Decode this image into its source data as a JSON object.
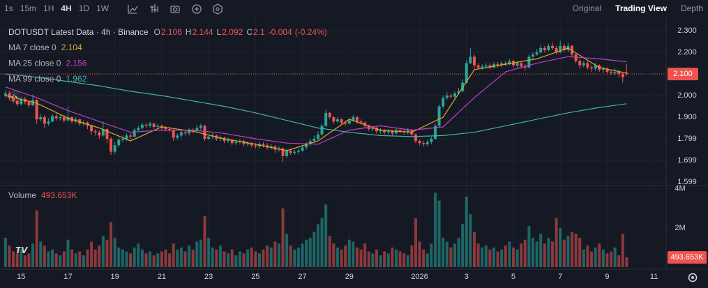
{
  "toolbar": {
    "intervals": [
      "1s",
      "15m",
      "1H",
      "4H",
      "1D",
      "1W"
    ],
    "active_interval": 3,
    "views": [
      "Original",
      "Trading View",
      "Depth"
    ],
    "active_view": 1
  },
  "chart_data": {
    "type": "candlestick",
    "title": "DOTUSDT Latest Data · 4h · Binance",
    "ohlc_labels": [
      "O",
      "H",
      "L",
      "C"
    ],
    "change": "-0.004",
    "change_pct": "(-0.24%)",
    "price_tag": "2.100",
    "up_color": "#26a69a",
    "down_color": "#ef5350",
    "xlim": [
      -1.4,
      169.1
    ],
    "xticks": [
      {
        "value": 4,
        "label": "15"
      },
      {
        "value": 16,
        "label": "17"
      },
      {
        "value": 28,
        "label": "19"
      },
      {
        "value": 40,
        "label": "21"
      },
      {
        "value": 52,
        "label": "23"
      },
      {
        "value": 64,
        "label": "25"
      },
      {
        "value": 76,
        "label": "27"
      },
      {
        "value": 88,
        "label": "29"
      },
      {
        "value": 106,
        "label": "2026"
      },
      {
        "value": 118,
        "label": "3"
      },
      {
        "value": 130,
        "label": "5"
      },
      {
        "value": 142,
        "label": "7"
      },
      {
        "value": 154,
        "label": "9"
      },
      {
        "value": 166,
        "label": "11"
      }
    ],
    "ylim": [
      1.587,
      2.352
    ],
    "yticks": [
      {
        "value": 2.3,
        "label": "2.300"
      },
      {
        "value": 2.2,
        "label": "2.200"
      },
      {
        "value": 2.1,
        "label": "2.100"
      },
      {
        "value": 2.0,
        "label": "2.000"
      },
      {
        "value": 1.9,
        "label": "1.900"
      },
      1.799,
      1.699,
      1.599
    ],
    "open": [
      2.0,
      2.01,
      1.99,
      1.975,
      1.96,
      1.985,
      1.97,
      1.955,
      1.98,
      1.89,
      1.9,
      1.87,
      1.88,
      1.905,
      1.895,
      1.9,
      1.885,
      1.9,
      1.88,
      1.89,
      1.87,
      1.875,
      1.86,
      1.835,
      1.83,
      1.815,
      1.845,
      1.8,
      1.74,
      1.77,
      1.795,
      1.8,
      1.815,
      1.81,
      1.84,
      1.85,
      1.865,
      1.86,
      1.87,
      1.855,
      1.86,
      1.85,
      1.845,
      1.84,
      1.805,
      1.815,
      1.83,
      1.825,
      1.84,
      1.835,
      1.85,
      1.86,
      1.8,
      1.81,
      1.815,
      1.8,
      1.805,
      1.79,
      1.795,
      1.78,
      1.785,
      1.79,
      1.775,
      1.78,
      1.77,
      1.765,
      1.775,
      1.77,
      1.76,
      1.765,
      1.75,
      1.755,
      1.72,
      1.745,
      1.735,
      1.74,
      1.745,
      1.76,
      1.775,
      1.79,
      1.8,
      1.82,
      1.86,
      1.92,
      1.9,
      1.88,
      1.89,
      1.875,
      1.87,
      1.885,
      1.9,
      1.88,
      1.875,
      1.86,
      1.845,
      1.85,
      1.835,
      1.84,
      1.83,
      1.835,
      1.825,
      1.84,
      1.835,
      1.83,
      1.84,
      1.82,
      1.79,
      1.78,
      1.775,
      1.785,
      1.8,
      1.86,
      1.95,
      1.99,
      2.0,
      1.995,
      2.01,
      2.02,
      2.06,
      2.15,
      2.18,
      2.14,
      2.13,
      2.135,
      2.14,
      2.13,
      2.145,
      2.14,
      2.15,
      2.145,
      2.16,
      2.14,
      2.15,
      2.135,
      2.13,
      2.18,
      2.19,
      2.2,
      2.22,
      2.21,
      2.23,
      2.22,
      2.2,
      2.23,
      2.21,
      2.23,
      2.19,
      2.16,
      2.14,
      2.15,
      2.13,
      2.125,
      2.14,
      2.12,
      2.125,
      2.11,
      2.105,
      2.11,
      2.1,
      2.106
    ],
    "high": [
      2.025,
      2.02,
      2.0,
      1.985,
      1.995,
      1.995,
      1.98,
      2.005,
      1.985,
      1.915,
      1.91,
      1.895,
      1.915,
      1.915,
      1.91,
      1.91,
      1.95,
      1.905,
      1.9,
      1.895,
      1.885,
      1.88,
      1.865,
      1.845,
      1.84,
      1.88,
      1.85,
      1.81,
      1.785,
      1.805,
      1.815,
      1.825,
      1.825,
      1.85,
      1.86,
      1.875,
      1.875,
      1.88,
      1.875,
      1.87,
      1.865,
      1.86,
      1.855,
      1.845,
      1.825,
      1.84,
      1.84,
      1.85,
      1.85,
      1.865,
      1.87,
      1.865,
      1.82,
      1.825,
      1.82,
      1.815,
      1.81,
      1.805,
      1.8,
      1.795,
      1.8,
      1.795,
      1.79,
      1.785,
      1.78,
      1.785,
      1.785,
      1.78,
      1.775,
      1.77,
      1.765,
      1.76,
      1.755,
      1.755,
      1.75,
      1.755,
      1.77,
      1.785,
      1.8,
      1.815,
      1.835,
      1.87,
      1.935,
      1.925,
      1.905,
      1.9,
      1.895,
      1.885,
      1.895,
      1.91,
      1.905,
      1.89,
      1.88,
      1.865,
      1.86,
      1.855,
      1.85,
      1.845,
      1.845,
      1.84,
      1.85,
      1.85,
      1.845,
      1.85,
      1.845,
      1.825,
      1.795,
      1.79,
      1.795,
      1.81,
      1.87,
      1.96,
      2.0,
      2.015,
      2.01,
      2.02,
      2.035,
      2.075,
      2.165,
      2.22,
      2.19,
      2.15,
      2.145,
      2.15,
      2.15,
      2.155,
      2.155,
      2.16,
      2.16,
      2.17,
      2.165,
      2.16,
      2.155,
      2.145,
      2.19,
      2.2,
      2.215,
      2.235,
      2.23,
      2.24,
      2.245,
      2.23,
      2.255,
      2.24,
      2.245,
      2.235,
      2.195,
      2.17,
      2.16,
      2.16,
      2.14,
      2.15,
      2.145,
      2.135,
      2.13,
      2.12,
      2.125,
      2.12,
      2.105,
      2.144
    ],
    "low": [
      1.99,
      1.98,
      1.965,
      1.95,
      1.955,
      1.96,
      1.945,
      1.95,
      1.87,
      1.88,
      1.85,
      1.86,
      1.875,
      1.885,
      1.885,
      1.875,
      1.88,
      1.87,
      1.87,
      1.86,
      1.86,
      1.845,
      1.82,
      1.815,
      1.8,
      1.81,
      1.78,
      1.725,
      1.73,
      1.76,
      1.785,
      1.79,
      1.8,
      1.805,
      1.83,
      1.84,
      1.85,
      1.85,
      1.845,
      1.845,
      1.84,
      1.835,
      1.83,
      1.79,
      1.795,
      1.805,
      1.815,
      1.815,
      1.825,
      1.83,
      1.84,
      1.79,
      1.795,
      1.8,
      1.79,
      1.79,
      1.78,
      1.78,
      1.77,
      1.77,
      1.775,
      1.765,
      1.765,
      1.76,
      1.755,
      1.755,
      1.76,
      1.75,
      1.75,
      1.735,
      1.74,
      1.69,
      1.71,
      1.725,
      1.725,
      1.73,
      1.74,
      1.75,
      1.765,
      1.78,
      1.795,
      1.815,
      1.855,
      1.89,
      1.87,
      1.875,
      1.865,
      1.86,
      1.865,
      1.88,
      1.87,
      1.865,
      1.85,
      1.835,
      1.835,
      1.825,
      1.825,
      1.82,
      1.82,
      1.815,
      1.82,
      1.825,
      1.82,
      1.82,
      1.81,
      1.78,
      1.77,
      1.765,
      1.765,
      1.775,
      1.795,
      1.855,
      1.94,
      1.98,
      1.985,
      1.985,
      2.005,
      2.015,
      2.055,
      2.145,
      2.125,
      2.12,
      2.12,
      2.125,
      2.12,
      2.125,
      2.13,
      2.13,
      2.135,
      2.14,
      2.13,
      2.13,
      2.125,
      2.115,
      2.125,
      2.17,
      2.185,
      2.195,
      2.2,
      2.205,
      2.21,
      2.19,
      2.195,
      2.2,
      2.2,
      2.18,
      2.15,
      2.125,
      2.13,
      2.12,
      2.11,
      2.115,
      2.11,
      2.105,
      2.1,
      2.095,
      2.095,
      2.085,
      2.06,
      2.092
    ],
    "close": [
      2.01,
      1.99,
      1.975,
      1.96,
      1.985,
      1.97,
      1.955,
      1.98,
      1.89,
      1.9,
      1.87,
      1.88,
      1.905,
      1.895,
      1.9,
      1.885,
      1.9,
      1.88,
      1.89,
      1.87,
      1.875,
      1.86,
      1.835,
      1.83,
      1.815,
      1.845,
      1.8,
      1.74,
      1.77,
      1.795,
      1.8,
      1.815,
      1.81,
      1.84,
      1.85,
      1.865,
      1.86,
      1.87,
      1.855,
      1.86,
      1.85,
      1.845,
      1.84,
      1.805,
      1.815,
      1.83,
      1.825,
      1.84,
      1.835,
      1.85,
      1.86,
      1.8,
      1.81,
      1.815,
      1.8,
      1.805,
      1.79,
      1.795,
      1.78,
      1.785,
      1.79,
      1.775,
      1.78,
      1.77,
      1.765,
      1.775,
      1.77,
      1.76,
      1.765,
      1.75,
      1.755,
      1.72,
      1.745,
      1.735,
      1.74,
      1.745,
      1.76,
      1.775,
      1.79,
      1.8,
      1.82,
      1.86,
      1.92,
      1.9,
      1.88,
      1.89,
      1.875,
      1.87,
      1.885,
      1.9,
      1.88,
      1.875,
      1.86,
      1.845,
      1.85,
      1.835,
      1.84,
      1.83,
      1.835,
      1.825,
      1.84,
      1.835,
      1.83,
      1.84,
      1.82,
      1.79,
      1.78,
      1.775,
      1.785,
      1.8,
      1.86,
      1.95,
      1.99,
      2.0,
      1.995,
      2.01,
      2.02,
      2.06,
      2.15,
      2.18,
      2.14,
      2.13,
      2.135,
      2.14,
      2.13,
      2.145,
      2.14,
      2.15,
      2.145,
      2.16,
      2.14,
      2.15,
      2.135,
      2.13,
      2.18,
      2.19,
      2.2,
      2.22,
      2.21,
      2.23,
      2.22,
      2.2,
      2.23,
      2.21,
      2.23,
      2.19,
      2.16,
      2.14,
      2.15,
      2.13,
      2.125,
      2.14,
      2.12,
      2.125,
      2.11,
      2.105,
      2.11,
      2.1,
      2.085,
      2.1
    ],
    "series": [
      {
        "name": "MA 7 close 0",
        "color": "#e0a526",
        "x": [
          0,
          8,
          16,
          24,
          32,
          40,
          48,
          56,
          64,
          72,
          80,
          88,
          96,
          104,
          112,
          120,
          128,
          136,
          144,
          152,
          159
        ],
        "values": [
          2.0,
          1.965,
          1.895,
          1.85,
          1.79,
          1.855,
          1.835,
          1.8,
          1.775,
          1.745,
          1.79,
          1.89,
          1.84,
          1.83,
          1.9,
          2.12,
          2.145,
          2.17,
          2.22,
          2.13,
          2.104
        ]
      },
      {
        "name": "MA 25 close 0",
        "color": "#c13fc9",
        "x": [
          0,
          8,
          16,
          24,
          32,
          40,
          48,
          56,
          64,
          72,
          80,
          88,
          96,
          104,
          112,
          120,
          128,
          136,
          144,
          152,
          159
        ],
        "values": [
          2.04,
          1.99,
          1.93,
          1.88,
          1.83,
          1.84,
          1.84,
          1.825,
          1.8,
          1.78,
          1.775,
          1.84,
          1.86,
          1.84,
          1.855,
          1.99,
          2.11,
          2.15,
          2.18,
          2.17,
          2.156
        ]
      },
      {
        "name": "MA 99 close 0",
        "color": "#3fb3a6",
        "x": [
          0,
          8,
          16,
          24,
          32,
          40,
          48,
          56,
          64,
          72,
          80,
          88,
          96,
          104,
          112,
          120,
          128,
          136,
          144,
          152,
          159
        ],
        "values": [
          2.1,
          2.085,
          2.065,
          2.045,
          2.02,
          2.0,
          1.975,
          1.95,
          1.92,
          1.885,
          1.85,
          1.83,
          1.815,
          1.81,
          1.815,
          1.83,
          1.86,
          1.89,
          1.92,
          1.945,
          1.962
        ]
      }
    ],
    "volume": {
      "name": "Volume",
      "last_label": "493.653K",
      "ylim": [
        0,
        4100000
      ],
      "yticks": [
        {
          "value": 4000000,
          "label": "4M"
        },
        {
          "value": 2000000,
          "label": "2M"
        }
      ],
      "values": [
        1500000,
        1100000,
        800000,
        700000,
        900000,
        600000,
        700000,
        1200000,
        2900000,
        1300000,
        1100000,
        800000,
        900000,
        700000,
        600000,
        800000,
        1400000,
        900000,
        700000,
        800000,
        600000,
        900000,
        1300000,
        900000,
        1100000,
        1600000,
        1400000,
        2300000,
        1500000,
        1000000,
        900000,
        800000,
        700000,
        1000000,
        1200000,
        900000,
        700000,
        800000,
        600000,
        700000,
        800000,
        900000,
        700000,
        1200000,
        900000,
        1000000,
        800000,
        1100000,
        900000,
        1300000,
        1400000,
        2600000,
        1500000,
        1000000,
        900000,
        1100000,
        800000,
        700000,
        900000,
        600000,
        800000,
        700000,
        900000,
        1000000,
        800000,
        700000,
        900000,
        1100000,
        1000000,
        1300000,
        1200000,
        3000000,
        1700000,
        1100000,
        900000,
        1000000,
        1200000,
        1400000,
        1500000,
        1800000,
        2200000,
        2500000,
        3200000,
        1600000,
        1200000,
        1000000,
        900000,
        1100000,
        1400000,
        1300000,
        1000000,
        900000,
        1200000,
        800000,
        700000,
        900000,
        600000,
        800000,
        700000,
        1000000,
        900000,
        800000,
        700000,
        600000,
        1100000,
        2500000,
        1300000,
        900000,
        700000,
        1200000,
        3800000,
        3400000,
        1500000,
        1300000,
        1000000,
        1200000,
        1500000,
        2200000,
        3600000,
        2700000,
        1800000,
        1200000,
        1000000,
        1100000,
        900000,
        1000000,
        800000,
        900000,
        1100000,
        1300000,
        1000000,
        900000,
        1200000,
        1400000,
        2100000,
        1500000,
        1300000,
        1700000,
        1200000,
        1500000,
        1300000,
        2500000,
        2000000,
        1400000,
        1600000,
        1800000,
        1700000,
        1500000,
        900000,
        1100000,
        800000,
        1000000,
        1200000,
        900000,
        700000,
        800000,
        1000000,
        600000,
        1700000,
        493653
      ]
    }
  }
}
